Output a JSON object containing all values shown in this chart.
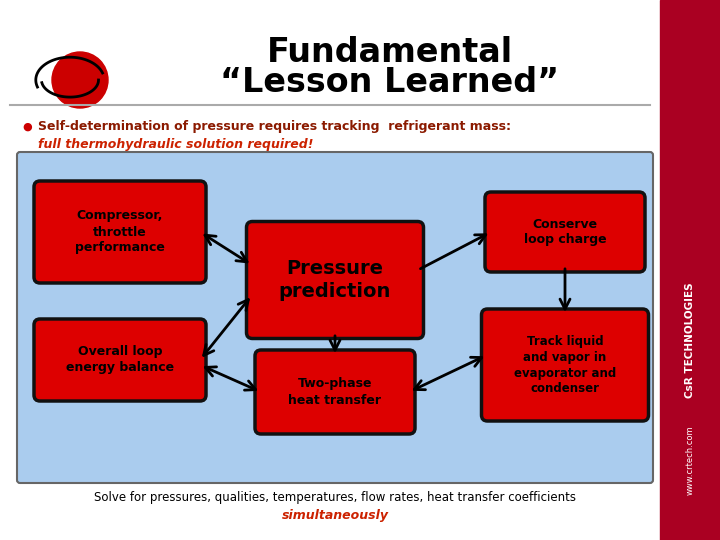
{
  "title_line1": "Fundamental",
  "title_line2": "“Lesson Learned”",
  "title_fontsize": 24,
  "title_color": "#000000",
  "bullet_text_line1": "Self-determination of pressure requires tracking  refrigerant mass:",
  "bullet_text_line2": "full thermohydraulic solution required!",
  "bullet_color1": "#8B1A00",
  "bullet_color2": "#cc2200",
  "bottom_text1": "Solve for pressures, qualities, temperatures, flow rates, heat transfer coefficients",
  "bottom_text2": "simultaneously",
  "bg_color": "#ffffff",
  "diagram_bg": "#aaccee",
  "box_color": "#dd0000",
  "box_text_color": "#000000",
  "arrow_color": "#000000",
  "right_bar_color": "#aa0022",
  "right_bar_text1": "CsR TECHNOLOGIES",
  "right_bar_text2": "www.crtech.com",
  "separator_color": "#aaaaaa"
}
